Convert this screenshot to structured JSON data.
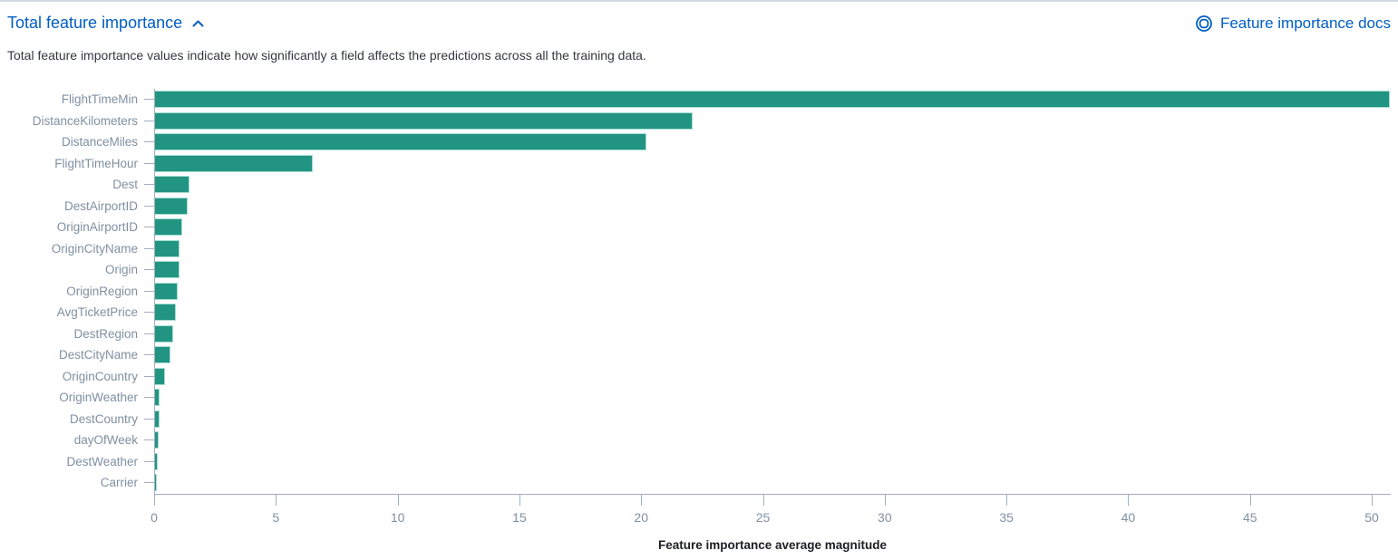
{
  "header": {
    "title": "Total feature importance",
    "docs_link_label": "Feature importance docs"
  },
  "description": "Total feature importance values indicate how significantly a field affects the predictions across all the training data.",
  "chart_data": {
    "type": "bar",
    "orientation": "horizontal",
    "categories": [
      "FlightTimeMin",
      "DistanceKilometers",
      "DistanceMiles",
      "FlightTimeHour",
      "Dest",
      "DestAirportID",
      "OriginAirportID",
      "OriginCityName",
      "Origin",
      "OriginRegion",
      "AvgTicketPrice",
      "DestRegion",
      "DestCityName",
      "OriginCountry",
      "OriginWeather",
      "DestCountry",
      "dayOfWeek",
      "DestWeather",
      "Carrier"
    ],
    "values": [
      50.75,
      22.1,
      20.2,
      6.5,
      1.4,
      1.35,
      1.1,
      1.0,
      1.0,
      0.93,
      0.85,
      0.75,
      0.63,
      0.42,
      0.19,
      0.18,
      0.15,
      0.12,
      0.06
    ],
    "xlabel": "Feature importance average magnitude",
    "ylabel": "",
    "xlim": [
      0,
      50.78
    ],
    "xticks": [
      0,
      5,
      10,
      15,
      20,
      25,
      30,
      35,
      40,
      45,
      50
    ],
    "grid": false,
    "legend": false,
    "bar_color": "#219582"
  },
  "colors": {
    "link_blue": "#005ec4",
    "bar_teal": "#219582",
    "axis_line": "#a4adc0",
    "axis_label": "#8090a2",
    "body_text": "#343741"
  }
}
